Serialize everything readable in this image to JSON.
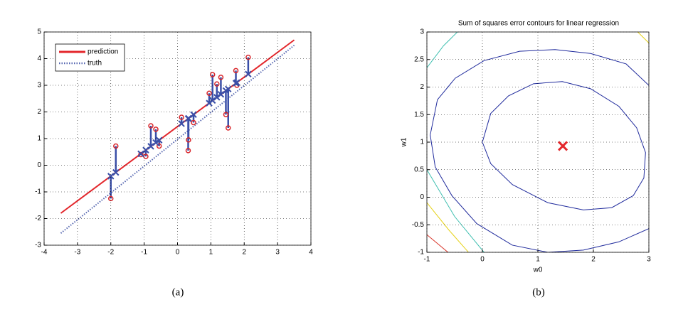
{
  "chart_data": [
    {
      "type": "scatter",
      "caption": "(a)",
      "xlim": [
        -4,
        4
      ],
      "ylim": [
        -3,
        5
      ],
      "xticks": [
        -4,
        -3,
        -2,
        -1,
        0,
        1,
        2,
        3,
        4
      ],
      "yticks": [
        -3,
        -2,
        -1,
        0,
        1,
        2,
        3,
        4,
        5
      ],
      "grid": true,
      "legend": "upper left",
      "residuals": true,
      "series": [
        {
          "name": "prediction",
          "color": "#e3262b",
          "style": "solid",
          "x": [
            -3.5,
            3.5
          ],
          "values": [
            -1.8,
            4.7
          ]
        },
        {
          "name": "truth",
          "color": "#5566b0",
          "style": "dotted",
          "x": [
            -3.5,
            3.5
          ],
          "values": [
            -2.55,
            4.5
          ]
        },
        {
          "color": "#d9262b",
          "marker": "circle",
          "x": [
            -2.0,
            -1.85,
            -1.1,
            -0.95,
            -0.8,
            -0.65,
            -0.55,
            0.12,
            0.32,
            0.33,
            0.48,
            0.95,
            1.05,
            1.18,
            1.3,
            1.45,
            1.52,
            1.75,
            1.78,
            2.12
          ],
          "values": [
            -1.25,
            0.72,
            0.4,
            0.33,
            1.48,
            1.35,
            0.72,
            1.8,
            0.55,
            0.95,
            1.6,
            2.7,
            3.4,
            3.05,
            3.3,
            1.9,
            1.4,
            3.55,
            3.0,
            4.05
          ]
        },
        {
          "color": "#3a4fa8",
          "marker": "x",
          "x": [
            -2.0,
            -1.85,
            -1.1,
            -0.95,
            -0.8,
            -0.65,
            -0.55,
            0.12,
            0.32,
            0.33,
            0.48,
            0.95,
            1.05,
            1.18,
            1.3,
            1.45,
            1.52,
            1.75,
            1.78,
            2.12
          ],
          "values": [
            -0.41,
            -0.27,
            0.43,
            0.57,
            0.71,
            0.85,
            0.94,
            1.56,
            1.75,
            1.76,
            1.9,
            2.33,
            2.43,
            2.55,
            2.66,
            2.8,
            2.86,
            3.08,
            3.1,
            3.42
          ]
        }
      ]
    },
    {
      "type": "contour",
      "title": "Sum of squares error contours for linear regression",
      "xlabel": "w0",
      "ylabel": "w1",
      "caption": "(b)",
      "xlim": [
        -1,
        3
      ],
      "ylim": [
        -1,
        3
      ],
      "xticks": [
        -1,
        0,
        1,
        2,
        3
      ],
      "yticks": [
        -1,
        -0.5,
        0,
        0.5,
        1,
        1.5,
        2,
        2.5,
        3
      ],
      "grid": true,
      "series": [
        {
          "color": "#1f2a9c",
          "style": "solid",
          "x": [
            0.0,
            0.15,
            0.47,
            0.92,
            1.44,
            1.95,
            2.46,
            2.78,
            2.94,
            2.91,
            2.72,
            2.33,
            1.82,
            1.18,
            0.54,
            0.15,
            0.0
          ],
          "values": [
            1.0,
            1.52,
            1.84,
            2.06,
            2.1,
            1.97,
            1.65,
            1.26,
            0.81,
            0.35,
            0.03,
            -0.19,
            -0.23,
            -0.1,
            0.23,
            0.61,
            1.0
          ]
        },
        {
          "color": "#1f2a9c",
          "style": "solid",
          "x": [
            -0.94,
            -0.81,
            -0.49,
            0.03,
            0.67,
            1.31,
            1.95,
            2.59,
            3.0,
            3.1,
            3.15,
            3.1,
            3.0,
            2.46,
            1.82,
            1.18,
            0.54,
            -0.1,
            -0.55,
            -0.85,
            -0.94
          ],
          "values": [
            1.13,
            1.77,
            2.16,
            2.48,
            2.65,
            2.68,
            2.61,
            2.42,
            2.03,
            1.7,
            0.8,
            -0.3,
            -0.57,
            -0.81,
            -0.96,
            -1.0,
            -0.87,
            -0.48,
            0.03,
            0.55,
            1.13
          ]
        },
        {
          "color": "#3fbfb0",
          "style": "solid",
          "x": [
            -1.0,
            -0.7,
            -0.4,
            0.5,
            2.0,
            3.3,
            3.5,
            3.3,
            1.0,
            0.03,
            -0.5,
            -1.0,
            -1.3,
            -1.0
          ],
          "values": [
            2.35,
            2.75,
            3.05,
            3.5,
            3.6,
            3.0,
            1.0,
            -1.2,
            -1.6,
            -1.0,
            -0.35,
            0.5,
            1.5,
            2.35
          ]
        },
        {
          "color": "#e6d21a",
          "style": "solid",
          "x": [
            -1.3,
            -1.0,
            -0.6,
            -0.25,
            -0.1,
            null,
            2.6,
            2.8,
            3.0,
            3.2
          ],
          "values": [
            0.3,
            -0.1,
            -0.6,
            -1.0,
            -1.3,
            null,
            3.2,
            3.0,
            2.8,
            2.6
          ]
        },
        {
          "color": "#d9362b",
          "style": "solid",
          "x": [
            -1.2,
            -1.0,
            -0.62,
            -0.4
          ],
          "values": [
            -0.45,
            -0.68,
            -1.0,
            -1.3
          ]
        }
      ],
      "point": {
        "x": 1.45,
        "y": 0.93,
        "color": "#e3262b"
      }
    }
  ]
}
